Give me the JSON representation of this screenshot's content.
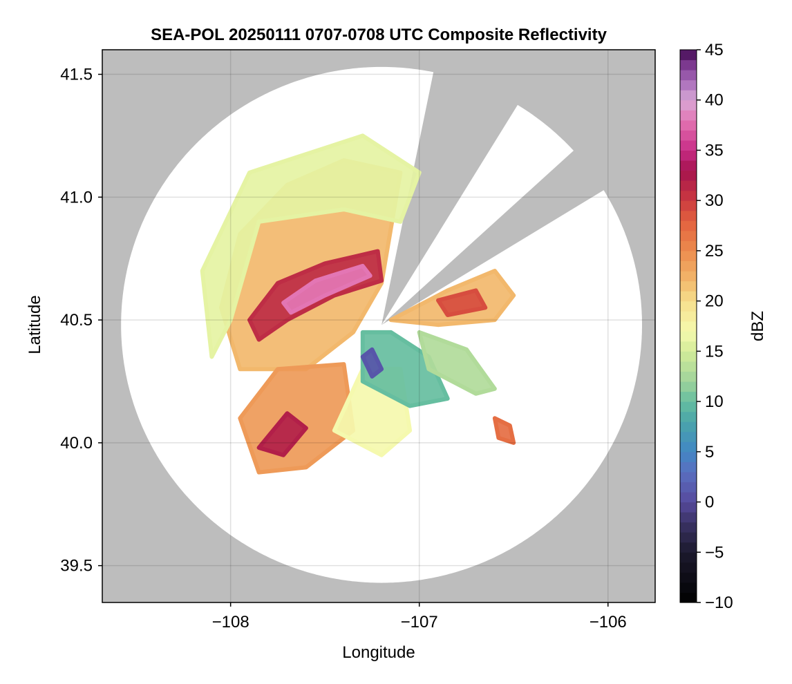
{
  "chart_data": {
    "type": "heatmap",
    "title": "SEA-POL 20250111 0707-0708 UTC Composite Reflectivity",
    "xlabel": "Longitude",
    "ylabel": "Latitude",
    "xlim": [
      -108.68,
      -105.75
    ],
    "ylim": [
      39.35,
      41.6
    ],
    "x_ticks": [
      -108,
      -107,
      -106
    ],
    "x_tick_labels": [
      "−108",
      "−107",
      "−106"
    ],
    "y_ticks": [
      39.5,
      40.0,
      40.5,
      41.0,
      41.5
    ],
    "y_tick_labels": [
      "39.5",
      "40.0",
      "40.5",
      "41.0",
      "41.5"
    ],
    "grid": true,
    "background_color": "#bdbdbd",
    "radar_center": {
      "lon": -107.2,
      "lat": 40.48
    },
    "radar_range_deg_lat": 1.05,
    "blocked_sectors_az_deg": [
      [
        12,
        31
      ],
      [
        48,
        58
      ]
    ],
    "colorbar": {
      "label": "dBZ",
      "min": -10,
      "max": 45,
      "ticks": [
        -10,
        -5,
        0,
        5,
        10,
        15,
        20,
        25,
        30,
        35,
        40,
        45
      ],
      "tick_labels": [
        "−10",
        "−5",
        "0",
        "5",
        "10",
        "15",
        "20",
        "25",
        "30",
        "35",
        "40",
        "45"
      ],
      "colormap_stops": [
        {
          "value": -10,
          "color": "#000000"
        },
        {
          "value": -5,
          "color": "#1c1a2e"
        },
        {
          "value": -2,
          "color": "#3b3366"
        },
        {
          "value": 0,
          "color": "#564a9d"
        },
        {
          "value": 3,
          "color": "#5a6fc0"
        },
        {
          "value": 5,
          "color": "#4287c4"
        },
        {
          "value": 8,
          "color": "#4aa5a9"
        },
        {
          "value": 10,
          "color": "#66bea0"
        },
        {
          "value": 12,
          "color": "#9fd39b"
        },
        {
          "value": 15,
          "color": "#d4ec98"
        },
        {
          "value": 17,
          "color": "#f5f9ae"
        },
        {
          "value": 20,
          "color": "#f6df8c"
        },
        {
          "value": 22,
          "color": "#f2b86c"
        },
        {
          "value": 25,
          "color": "#ec8b4e"
        },
        {
          "value": 28,
          "color": "#e2603e"
        },
        {
          "value": 30,
          "color": "#cb3a40"
        },
        {
          "value": 33,
          "color": "#a5124e"
        },
        {
          "value": 35,
          "color": "#c82c86"
        },
        {
          "value": 38,
          "color": "#e376b4"
        },
        {
          "value": 40,
          "color": "#d8a8d6"
        },
        {
          "value": 42,
          "color": "#a467b7"
        },
        {
          "value": 44,
          "color": "#6e2a82"
        },
        {
          "value": 45,
          "color": "#3b0a4a"
        }
      ]
    },
    "echo_regions": [
      {
        "name": "main-stratiform-northwest",
        "points": [
          [
            -107.95,
            40.3
          ],
          [
            -108.05,
            40.55
          ],
          [
            -107.95,
            40.85
          ],
          [
            -107.7,
            41.05
          ],
          [
            -107.4,
            41.15
          ],
          [
            -107.1,
            41.1
          ],
          [
            -107.2,
            40.65
          ],
          [
            -107.35,
            40.45
          ],
          [
            -107.6,
            40.3
          ]
        ],
        "dbz": 22
      },
      {
        "name": "outer-light-northwest",
        "points": [
          [
            -108.1,
            40.35
          ],
          [
            -108.15,
            40.7
          ],
          [
            -107.9,
            41.1
          ],
          [
            -107.5,
            41.2
          ],
          [
            -107.3,
            41.25
          ],
          [
            -107.0,
            41.1
          ],
          [
            -107.1,
            40.9
          ],
          [
            -107.4,
            40.95
          ],
          [
            -107.85,
            40.9
          ],
          [
            -108.0,
            40.5
          ]
        ],
        "dbz": 16
      },
      {
        "name": "band-core",
        "points": [
          [
            -107.9,
            40.5
          ],
          [
            -107.75,
            40.65
          ],
          [
            -107.5,
            40.73
          ],
          [
            -107.22,
            40.78
          ],
          [
            -107.2,
            40.66
          ],
          [
            -107.45,
            40.6
          ],
          [
            -107.7,
            40.5
          ],
          [
            -107.85,
            40.42
          ]
        ],
        "dbz": 31
      },
      {
        "name": "band-max",
        "points": [
          [
            -107.72,
            40.57
          ],
          [
            -107.55,
            40.66
          ],
          [
            -107.3,
            40.72
          ],
          [
            -107.26,
            40.68
          ],
          [
            -107.5,
            40.6
          ],
          [
            -107.68,
            40.53
          ]
        ],
        "dbz": 38
      },
      {
        "name": "south-arm",
        "points": [
          [
            -107.95,
            40.1
          ],
          [
            -107.75,
            40.3
          ],
          [
            -107.4,
            40.32
          ],
          [
            -107.35,
            40.05
          ],
          [
            -107.6,
            39.9
          ],
          [
            -107.85,
            39.88
          ]
        ],
        "dbz": 24
      },
      {
        "name": "south-arm-core",
        "points": [
          [
            -107.85,
            39.98
          ],
          [
            -107.7,
            40.12
          ],
          [
            -107.6,
            40.06
          ],
          [
            -107.72,
            39.95
          ]
        ],
        "dbz": 32
      },
      {
        "name": "south-central-light",
        "points": [
          [
            -107.45,
            40.05
          ],
          [
            -107.3,
            40.3
          ],
          [
            -107.1,
            40.3
          ],
          [
            -107.05,
            40.05
          ],
          [
            -107.2,
            39.95
          ]
        ],
        "dbz": 17
      },
      {
        "name": "southeast-low",
        "points": [
          [
            -107.3,
            40.45
          ],
          [
            -107.15,
            40.45
          ],
          [
            -106.95,
            40.35
          ],
          [
            -106.85,
            40.18
          ],
          [
            -107.05,
            40.15
          ],
          [
            -107.3,
            40.25
          ]
        ],
        "dbz": 10
      },
      {
        "name": "southeast-weak",
        "points": [
          [
            -107.3,
            40.35
          ],
          [
            -107.25,
            40.27
          ],
          [
            -107.2,
            40.3
          ],
          [
            -107.25,
            40.38
          ]
        ],
        "dbz": 1
      },
      {
        "name": "east-sector",
        "points": [
          [
            -107.15,
            40.5
          ],
          [
            -106.85,
            40.62
          ],
          [
            -106.6,
            40.7
          ],
          [
            -106.5,
            40.6
          ],
          [
            -106.6,
            40.5
          ],
          [
            -106.9,
            40.48
          ]
        ],
        "dbz": 22
      },
      {
        "name": "east-core",
        "points": [
          [
            -106.9,
            40.58
          ],
          [
            -106.7,
            40.62
          ],
          [
            -106.65,
            40.55
          ],
          [
            -106.85,
            40.52
          ]
        ],
        "dbz": 29
      },
      {
        "name": "east-fringe",
        "points": [
          [
            -107.0,
            40.45
          ],
          [
            -106.75,
            40.38
          ],
          [
            -106.6,
            40.22
          ],
          [
            -106.7,
            40.2
          ],
          [
            -106.95,
            40.3
          ]
        ],
        "dbz": 13
      },
      {
        "name": "southeast-cell",
        "points": [
          [
            -106.6,
            40.1
          ],
          [
            -106.52,
            40.07
          ],
          [
            -106.5,
            40.0
          ],
          [
            -106.58,
            40.02
          ]
        ],
        "dbz": 27
      }
    ]
  }
}
